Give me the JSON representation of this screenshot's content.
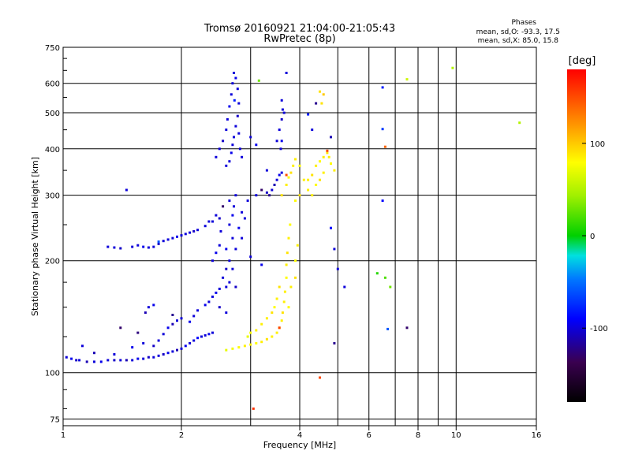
{
  "chart_data": {
    "type": "scatter",
    "title": "Tromsø 20160921 21:04:00-21:05:43",
    "subtitle": "RwPretec (8p)",
    "xlabel": "Frequency [MHz]",
    "ylabel": "Stationary phase Virtual Height [km]",
    "x_scale": "log",
    "y_scale": "log",
    "xlim": [
      1,
      16
    ],
    "ylim": [
      72,
      750
    ],
    "x_ticks": [
      1,
      2,
      4,
      6,
      8,
      10,
      16
    ],
    "x_minor_ticks": [
      3,
      5,
      7,
      9
    ],
    "y_ticks": [
      75,
      100,
      200,
      300,
      400,
      500,
      600,
      750
    ],
    "grid": true,
    "phases_box": {
      "title": "Phases",
      "line1": "mean, sd,O: -93.3, 17.5",
      "line2": "mean, sd,X: 85.0, 15.8"
    },
    "colorbar": {
      "label": "[deg]",
      "range": [
        -180,
        180
      ],
      "ticks": [
        {
          "value": 100,
          "label": "100"
        },
        {
          "value": 0,
          "label": "0"
        },
        {
          "value": -100,
          "label": "-100"
        }
      ]
    },
    "series": [
      {
        "points": [
          [
            1.02,
            110,
            -100
          ],
          [
            1.05,
            109,
            -95
          ],
          [
            1.08,
            108,
            -105
          ],
          [
            1.1,
            108,
            -100
          ],
          [
            1.15,
            107,
            -110
          ],
          [
            1.2,
            107,
            -100
          ],
          [
            1.25,
            107,
            -95
          ],
          [
            1.3,
            108,
            -100
          ],
          [
            1.35,
            108,
            -105
          ],
          [
            1.4,
            108,
            -100
          ],
          [
            1.45,
            108,
            -110
          ],
          [
            1.5,
            108,
            -100
          ],
          [
            1.55,
            109,
            -95
          ],
          [
            1.6,
            109,
            -100
          ],
          [
            1.65,
            110,
            -105
          ],
          [
            1.7,
            110,
            -100
          ],
          [
            1.75,
            111,
            -100
          ],
          [
            1.8,
            112,
            -105
          ],
          [
            1.85,
            113,
            -95
          ],
          [
            1.9,
            114,
            -100
          ],
          [
            1.95,
            115,
            -110
          ],
          [
            2.0,
            116,
            -100
          ],
          [
            2.05,
            118,
            -95
          ],
          [
            2.1,
            120,
            -100
          ],
          [
            2.15,
            122,
            -100
          ],
          [
            2.2,
            124,
            -90
          ],
          [
            2.25,
            125,
            -100
          ],
          [
            2.3,
            126,
            -100
          ],
          [
            2.35,
            127,
            -95
          ],
          [
            2.4,
            128,
            -100
          ],
          [
            1.12,
            118,
            -100
          ],
          [
            1.2,
            113,
            -110
          ],
          [
            1.35,
            112,
            -100
          ],
          [
            1.5,
            117,
            -95
          ],
          [
            1.6,
            120,
            -100
          ],
          [
            1.7,
            118,
            -105
          ],
          [
            1.75,
            122,
            -100
          ],
          [
            1.8,
            127,
            -100
          ],
          [
            1.85,
            132,
            -95
          ],
          [
            1.9,
            135,
            -110
          ],
          [
            1.95,
            138,
            -100
          ],
          [
            2.0,
            140,
            -100
          ],
          [
            2.1,
            137,
            -95
          ],
          [
            2.15,
            142,
            -100
          ],
          [
            2.2,
            147,
            -100
          ],
          [
            2.3,
            152,
            -95
          ],
          [
            2.35,
            155,
            -100
          ],
          [
            2.4,
            160,
            -100
          ],
          [
            2.45,
            164,
            -95
          ],
          [
            2.5,
            168,
            -100
          ],
          [
            2.5,
            150,
            -105
          ],
          [
            2.6,
            145,
            -100
          ],
          [
            2.6,
            170,
            -100
          ],
          [
            2.65,
            175,
            -100
          ],
          [
            1.62,
            145,
            -110
          ],
          [
            1.65,
            150,
            -100
          ],
          [
            1.7,
            152,
            -95
          ],
          [
            1.9,
            143,
            -120
          ],
          [
            1.4,
            132,
            -130
          ],
          [
            1.55,
            128,
            -125
          ],
          [
            2.4,
            200,
            -100
          ],
          [
            2.45,
            210,
            -95
          ],
          [
            2.5,
            220,
            -100
          ],
          [
            2.52,
            240,
            -100
          ],
          [
            2.55,
            180,
            -100
          ],
          [
            2.6,
            190,
            -105
          ],
          [
            2.65,
            200,
            -100
          ],
          [
            2.6,
            215,
            -95
          ],
          [
            2.7,
            230,
            -100
          ],
          [
            2.65,
            250,
            -100
          ],
          [
            2.7,
            265,
            -95
          ],
          [
            2.72,
            280,
            -100
          ],
          [
            2.75,
            300,
            -100
          ],
          [
            2.7,
            190,
            -100
          ],
          [
            2.75,
            170,
            -105
          ],
          [
            2.75,
            215,
            -100
          ],
          [
            2.8,
            245,
            -95
          ],
          [
            2.85,
            270,
            -100
          ],
          [
            2.95,
            290,
            -100
          ],
          [
            3.1,
            300,
            -100
          ],
          [
            3.3,
            305,
            -105
          ],
          [
            3.4,
            310,
            -100
          ],
          [
            3.45,
            320,
            -110
          ],
          [
            3.5,
            330,
            -100
          ],
          [
            3.55,
            340,
            -95
          ],
          [
            3.6,
            345,
            -100
          ],
          [
            2.9,
            260,
            -100
          ],
          [
            2.85,
            230,
            -100
          ],
          [
            3.0,
            205,
            -100
          ],
          [
            3.2,
            195,
            -95
          ],
          [
            2.5,
            260,
            -105
          ],
          [
            2.45,
            265,
            -100
          ],
          [
            2.35,
            255,
            -100
          ],
          [
            2.55,
            280,
            -130
          ],
          [
            2.65,
            290,
            -100
          ],
          [
            1.3,
            218,
            -100
          ],
          [
            1.35,
            217,
            -100
          ],
          [
            1.4,
            216,
            -105
          ],
          [
            1.5,
            218,
            -100
          ],
          [
            1.55,
            220,
            -100
          ],
          [
            1.6,
            218,
            -95
          ],
          [
            1.65,
            217,
            -100
          ],
          [
            1.7,
            218,
            -100
          ],
          [
            1.75,
            222,
            -105
          ],
          [
            1.8,
            226,
            -100
          ],
          [
            1.85,
            228,
            -100
          ],
          [
            1.9,
            230,
            -100
          ],
          [
            1.95,
            232,
            -95
          ],
          [
            2.0,
            234,
            -100
          ],
          [
            2.05,
            236,
            -100
          ],
          [
            2.1,
            238,
            -100
          ],
          [
            2.15,
            240,
            -105
          ],
          [
            2.2,
            242,
            -100
          ],
          [
            2.3,
            248,
            -100
          ],
          [
            2.4,
            255,
            -100
          ],
          [
            1.45,
            310,
            -100
          ],
          [
            1.75,
            225,
            -60
          ],
          [
            2.45,
            380,
            -100
          ],
          [
            2.5,
            400,
            -100
          ],
          [
            2.55,
            420,
            -105
          ],
          [
            2.6,
            450,
            -100
          ],
          [
            2.62,
            480,
            -100
          ],
          [
            2.65,
            520,
            -95
          ],
          [
            2.68,
            560,
            -100
          ],
          [
            2.7,
            600,
            -100
          ],
          [
            2.72,
            640,
            -100
          ],
          [
            2.75,
            620,
            -95
          ],
          [
            2.78,
            580,
            -100
          ],
          [
            2.8,
            530,
            -100
          ],
          [
            2.78,
            490,
            -105
          ],
          [
            2.75,
            460,
            -100
          ],
          [
            2.72,
            430,
            -100
          ],
          [
            2.7,
            410,
            -100
          ],
          [
            2.68,
            390,
            -95
          ],
          [
            2.65,
            370,
            -100
          ],
          [
            2.6,
            360,
            -100
          ],
          [
            2.8,
            440,
            -100
          ],
          [
            2.82,
            400,
            -100
          ],
          [
            2.85,
            380,
            -100
          ],
          [
            2.73,
            540,
            -80
          ],
          [
            3.0,
            430,
            -100
          ],
          [
            3.1,
            410,
            -95
          ],
          [
            3.3,
            350,
            -100
          ],
          [
            3.5,
            420,
            -100
          ],
          [
            3.55,
            450,
            -100
          ],
          [
            3.6,
            480,
            -105
          ],
          [
            3.62,
            510,
            -100
          ],
          [
            3.6,
            540,
            -100
          ],
          [
            3.58,
            400,
            -100
          ],
          [
            3.6,
            420,
            -95
          ],
          [
            3.65,
            500,
            -100
          ],
          [
            3.7,
            640,
            -100
          ],
          [
            3.2,
            310,
            -130
          ],
          [
            3.35,
            300,
            -120
          ],
          [
            2.6,
            115,
            70
          ],
          [
            2.7,
            116,
            75
          ],
          [
            2.8,
            117,
            80
          ],
          [
            2.9,
            118,
            85
          ],
          [
            3.0,
            119,
            85
          ],
          [
            3.1,
            120,
            80
          ],
          [
            3.2,
            121,
            85
          ],
          [
            3.3,
            123,
            90
          ],
          [
            3.4,
            125,
            85
          ],
          [
            3.5,
            128,
            85
          ],
          [
            3.55,
            132,
            80
          ],
          [
            3.6,
            138,
            85
          ],
          [
            3.62,
            145,
            90
          ],
          [
            3.65,
            155,
            85
          ],
          [
            3.67,
            165,
            85
          ],
          [
            3.7,
            180,
            80
          ],
          [
            3.7,
            195,
            85
          ],
          [
            3.72,
            210,
            90
          ],
          [
            3.75,
            230,
            85
          ],
          [
            3.78,
            250,
            80
          ],
          [
            3.2,
            135,
            85
          ],
          [
            3.3,
            140,
            85
          ],
          [
            3.4,
            145,
            90
          ],
          [
            3.45,
            150,
            80
          ],
          [
            3.5,
            158,
            85
          ],
          [
            3.55,
            170,
            90
          ],
          [
            3.0,
            128,
            80
          ],
          [
            3.1,
            130,
            85
          ],
          [
            2.95,
            125,
            70
          ],
          [
            3.6,
            300,
            90
          ],
          [
            3.7,
            320,
            85
          ],
          [
            3.75,
            335,
            80
          ],
          [
            3.8,
            345,
            90
          ],
          [
            3.85,
            360,
            85
          ],
          [
            3.9,
            375,
            85
          ],
          [
            4.0,
            360,
            80
          ],
          [
            4.1,
            330,
            85
          ],
          [
            4.0,
            300,
            90
          ],
          [
            3.9,
            290,
            80
          ],
          [
            4.2,
            330,
            85
          ],
          [
            4.3,
            340,
            90
          ],
          [
            4.4,
            360,
            85
          ],
          [
            4.5,
            370,
            80
          ],
          [
            4.6,
            380,
            85
          ],
          [
            4.7,
            390,
            90
          ],
          [
            4.75,
            380,
            85
          ],
          [
            4.8,
            365,
            80
          ],
          [
            4.6,
            345,
            85
          ],
          [
            4.5,
            330,
            90
          ],
          [
            4.2,
            310,
            85
          ],
          [
            4.4,
            320,
            80
          ],
          [
            4.3,
            300,
            85
          ],
          [
            4.9,
            350,
            85
          ],
          [
            3.9,
            200,
            80
          ],
          [
            3.95,
            220,
            85
          ],
          [
            3.8,
            170,
            85
          ],
          [
            3.75,
            150,
            80
          ],
          [
            3.9,
            180,
            90
          ],
          [
            3.15,
            610,
            30
          ],
          [
            7.5,
            615,
            60
          ],
          [
            9.8,
            660,
            50
          ],
          [
            14.5,
            470,
            50
          ],
          [
            4.7,
            395,
            150
          ],
          [
            4.5,
            570,
            90
          ],
          [
            4.55,
            530,
            90
          ],
          [
            5.0,
            190,
            -100
          ],
          [
            4.8,
            245,
            -90
          ],
          [
            4.9,
            215,
            -100
          ],
          [
            5.2,
            170,
            -100
          ],
          [
            6.3,
            185,
            10
          ],
          [
            6.6,
            180,
            20
          ],
          [
            6.8,
            170,
            30
          ],
          [
            6.5,
            585,
            -80
          ],
          [
            6.5,
            452,
            -70
          ],
          [
            6.6,
            405,
            140
          ],
          [
            6.5,
            290,
            -90
          ],
          [
            6.7,
            131,
            -60
          ],
          [
            7.5,
            132,
            -130
          ],
          [
            4.9,
            120,
            -120
          ],
          [
            4.5,
            97,
            150
          ],
          [
            3.05,
            80,
            160
          ],
          [
            3.55,
            132,
            155
          ],
          [
            3.7,
            340,
            150
          ],
          [
            4.2,
            495,
            -80
          ],
          [
            4.4,
            530,
            -120
          ],
          [
            4.6,
            560,
            100
          ],
          [
            4.3,
            450,
            -100
          ],
          [
            4.8,
            430,
            -110
          ]
        ]
      }
    ]
  }
}
